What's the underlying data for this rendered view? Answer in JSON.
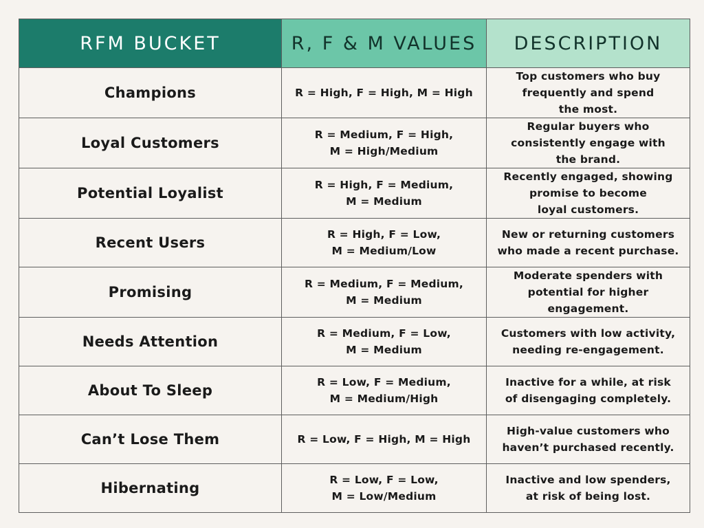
{
  "headers": {
    "bucket": "RFM BUCKET",
    "values": "R, F & M VALUES",
    "description": "DESCRIPTION"
  },
  "rows": [
    {
      "bucket": "Champions",
      "values": [
        "R = High, F = High, M = High"
      ],
      "description": [
        "Top customers who buy",
        "frequently and spend",
        "the most."
      ]
    },
    {
      "bucket": "Loyal Customers",
      "values": [
        "R = Medium, F = High,",
        "M = High/Medium"
      ],
      "description": [
        "Regular buyers who",
        "consistently engage with",
        "the brand."
      ]
    },
    {
      "bucket": "Potential Loyalist",
      "values": [
        "R = High, F = Medium,",
        "M = Medium"
      ],
      "description": [
        "Recently engaged, showing",
        "promise to become",
        "loyal customers."
      ]
    },
    {
      "bucket": "Recent Users",
      "values": [
        "R = High, F = Low,",
        "M = Medium/Low"
      ],
      "description": [
        "New or returning customers",
        "who made a recent purchase."
      ]
    },
    {
      "bucket": "Promising",
      "values": [
        "R = Medium, F = Medium,",
        "M = Medium"
      ],
      "description": [
        "Moderate spenders with",
        "potential for higher",
        "engagement."
      ]
    },
    {
      "bucket": "Needs Attention",
      "values": [
        "R = Medium, F = Low,",
        "M = Medium"
      ],
      "description": [
        "Customers with low activity,",
        "needing re-engagement."
      ]
    },
    {
      "bucket": "About To Sleep",
      "values": [
        "R = Low, F = Medium,",
        "M = Medium/High"
      ],
      "description": [
        "Inactive for a while, at risk",
        "of disengaging completely."
      ]
    },
    {
      "bucket": "Can’t Lose Them",
      "values": [
        "R = Low, F = High, M = High"
      ],
      "description": [
        "High-value customers who",
        "haven’t purchased recently."
      ]
    },
    {
      "bucket": "Hibernating",
      "values": [
        "R = Low, F = Low,",
        "M = Low/Medium"
      ],
      "description": [
        "Inactive and low spenders,",
        "at risk of being lost."
      ]
    }
  ],
  "colors": {
    "header_bucket_bg": "#1c7c6b",
    "header_values_bg": "#6cc6a8",
    "header_desc_bg": "#b4e2cc",
    "page_bg": "#f6f3ef"
  }
}
